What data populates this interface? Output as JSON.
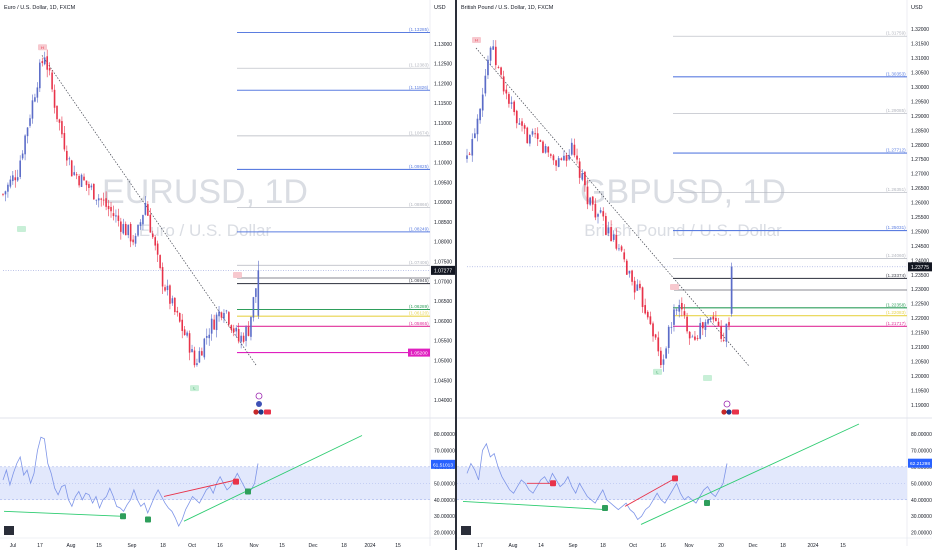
{
  "colors": {
    "bull": "#5b6cc8",
    "bear": "#e8334a",
    "rsi_line": "#7e95e8",
    "rsi_band": "#dde4fb",
    "trend_up": "#2ecc71",
    "trend_red": "#e8334a",
    "level_blue": "#5b7de0",
    "level_gray": "#b2b5be",
    "level_green": "#2e9e5b",
    "level_yellow": "#e8d44d",
    "level_pink": "#e0309a",
    "level_magenta": "#e020c0",
    "level_dark": "#434651"
  },
  "panels": [
    {
      "id": "eurusd",
      "symbol_title": "Euro / U.S. Dollar, 1D, FXCM",
      "watermark_symbol": "EURUSD, 1D",
      "watermark_desc": "Euro / U.S. Dollar",
      "axis_title": "USD",
      "chart_data": {
        "type": "candlestick",
        "y_ticks": [
          "1.13000",
          "1.12500",
          "1.12000",
          "1.11500",
          "1.11000",
          "1.10500",
          "1.10000",
          "1.09500",
          "1.09000",
          "1.08500",
          "1.08000",
          "1.07500",
          "1.07000",
          "1.06500",
          "1.06000",
          "1.05500",
          "1.05000",
          "1.04500",
          "1.04000"
        ],
        "ylim": [
          1.037,
          1.1355
        ],
        "x_ticks": [
          "Jul",
          "17",
          "Aug",
          "15",
          "Sep",
          "18",
          "Oct",
          "16",
          "Nov",
          "15",
          "Dec",
          "18",
          "2024",
          "15"
        ],
        "last_price": "1.07277",
        "last_value": 1.07277,
        "swing_high": {
          "label": "H",
          "value": 1.1276
        },
        "swing_low": {
          "label": "L",
          "value": 1.0448
        },
        "levels": [
          {
            "label": "(1.13285)",
            "value": 1.13285,
            "color": "level_blue",
            "style": "solid"
          },
          {
            "label": "(1.12383)",
            "value": 1.12383,
            "color": "level_gray",
            "style": "solid"
          },
          {
            "label": "(1.11826)",
            "value": 1.11826,
            "color": "level_blue",
            "style": "solid"
          },
          {
            "label": "(1.10674)",
            "value": 1.10674,
            "color": "level_gray",
            "style": "solid"
          },
          {
            "label": "(1.09825)",
            "value": 1.09825,
            "color": "level_blue",
            "style": "solid"
          },
          {
            "label": "(1.08866)",
            "value": 1.08866,
            "color": "level_gray",
            "style": "solid"
          },
          {
            "label": "(1.08249)",
            "value": 1.08249,
            "color": "level_blue",
            "style": "solid"
          },
          {
            "label": "(1.07406)",
            "value": 1.07406,
            "color": "level_gray",
            "style": "solid"
          },
          {
            "label": "(1.06945)",
            "value": 1.06945,
            "color": "level_dark",
            "style": "solid"
          },
          {
            "label": "(1.06289)",
            "value": 1.06289,
            "color": "level_green",
            "style": "solid"
          },
          {
            "label": "(1.06120)",
            "value": 1.0612,
            "color": "level_yellow",
            "style": "solid"
          },
          {
            "label": "(1.05865)",
            "value": 1.05865,
            "color": "level_pink",
            "style": "solid"
          },
          {
            "label": "1.05200",
            "value": 1.052,
            "color": "level_magenta",
            "style": "solid"
          }
        ],
        "rsi": {
          "title": "RSI",
          "y_ticks": [
            "80.00000",
            "70.00000",
            "60.00000",
            "50.00000",
            "40.00000",
            "30.00000",
            "20.00000"
          ],
          "ylim": [
            18,
            86
          ],
          "band": [
            40,
            60
          ],
          "last_label": "61.51013",
          "last_value": 61.51,
          "values": [
            52,
            58,
            49,
            56,
            62,
            66,
            55,
            58,
            50,
            56,
            70,
            78,
            77,
            62,
            56,
            47,
            43,
            48,
            49,
            40,
            36,
            42,
            45,
            40,
            44,
            43,
            38,
            42,
            35,
            40,
            42,
            47,
            42,
            36,
            35,
            33,
            37,
            40,
            46,
            40,
            36,
            38,
            32,
            37,
            42,
            46,
            42,
            38,
            35,
            33,
            29,
            24,
            28,
            34,
            38,
            42,
            40,
            38,
            42,
            46,
            48,
            44,
            50,
            54,
            50,
            46,
            48,
            52,
            56,
            52,
            48,
            44,
            46,
            50,
            62
          ]
        }
      }
    },
    {
      "id": "gbpusd",
      "symbol_title": "British Pound / U.S. Dollar, 1D, FXCM",
      "watermark_symbol": "GBPUSD, 1D",
      "watermark_desc": "British Pound / U.S. Dollar",
      "axis_title": "USD",
      "chart_data": {
        "type": "candlestick",
        "y_ticks": [
          "1.32000",
          "1.31500",
          "1.31000",
          "1.30500",
          "1.30000",
          "1.29500",
          "1.29000",
          "1.28500",
          "1.28000",
          "1.27500",
          "1.27000",
          "1.26500",
          "1.26000",
          "1.25500",
          "1.25000",
          "1.24500",
          "1.24000",
          "1.23500",
          "1.23000",
          "1.22500",
          "1.22000",
          "1.21500",
          "1.21000",
          "1.20500",
          "1.20000",
          "1.19500",
          "1.19000"
        ],
        "ylim": [
          1.1875,
          1.3225
        ],
        "x_ticks": [
          "17",
          "Aug",
          "14",
          "Sep",
          "18",
          "Oct",
          "16",
          "Nov",
          "20",
          "Dec",
          "18",
          "2024",
          "15"
        ],
        "last_price": "1.23775",
        "last_value": 1.23775,
        "swing_high": {
          "label": "H",
          "value": 1.3142
        },
        "swing_low": {
          "label": "L",
          "value": 1.2038
        },
        "levels": [
          {
            "label": "(1.31759)",
            "value": 1.31759,
            "color": "level_gray",
            "style": "solid"
          },
          {
            "label": "(1.30353)",
            "value": 1.30353,
            "color": "level_blue",
            "style": "solid"
          },
          {
            "label": "(1.29085)",
            "value": 1.29085,
            "color": "level_gray",
            "style": "solid"
          },
          {
            "label": "(1.27712)",
            "value": 1.27712,
            "color": "level_blue",
            "style": "solid"
          },
          {
            "label": "(1.26351)",
            "value": 1.26351,
            "color": "level_gray",
            "style": "solid"
          },
          {
            "label": "(1.25031)",
            "value": 1.25031,
            "color": "level_blue",
            "style": "solid"
          },
          {
            "label": "(1.24060)",
            "value": 1.2406,
            "color": "level_gray",
            "style": "solid"
          },
          {
            "label": "(1.23374)",
            "value": 1.23374,
            "color": "level_dark",
            "style": "solid"
          },
          {
            "label": "(1.22358)",
            "value": 1.22358,
            "color": "level_green",
            "style": "solid"
          },
          {
            "label": "(1.22083)",
            "value": 1.22083,
            "color": "level_yellow",
            "style": "solid"
          },
          {
            "label": "(1.21717)",
            "value": 1.21717,
            "color": "level_pink",
            "style": "solid"
          }
        ],
        "rsi": {
          "title": "RSI",
          "y_ticks": [
            "80.00000",
            "70.00000",
            "60.00000",
            "50.00000",
            "40.00000",
            "30.00000",
            "20.00000"
          ],
          "ylim": [
            18,
            86
          ],
          "band": [
            40,
            60
          ],
          "last_label": "62.21298",
          "last_value": 62.21,
          "values": [
            56,
            62,
            58,
            52,
            70,
            74,
            66,
            68,
            60,
            54,
            50,
            46,
            44,
            48,
            52,
            50,
            46,
            44,
            48,
            52,
            54,
            50,
            56,
            52,
            48,
            50,
            54,
            48,
            44,
            50,
            46,
            42,
            40,
            38,
            42,
            46,
            40,
            38,
            36,
            34,
            36,
            38,
            34,
            32,
            28,
            30,
            34,
            36,
            40,
            44,
            40,
            38,
            42,
            46,
            50,
            44,
            40,
            42,
            40,
            38,
            42,
            46,
            48,
            44,
            42,
            46,
            50,
            62
          ]
        }
      }
    }
  ]
}
